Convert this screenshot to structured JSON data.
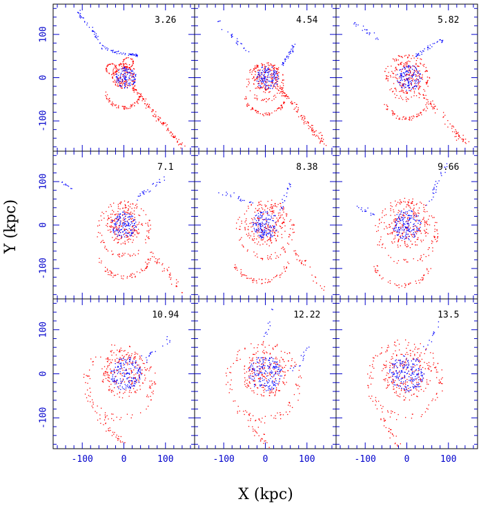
{
  "chart_data": {
    "type": "scatter",
    "xlabel": "X (kpc)",
    "ylabel": "Y (kpc)",
    "xlim": [
      -170,
      170
    ],
    "ylim": [
      -170,
      170
    ],
    "xticks": [
      -100,
      0,
      100
    ],
    "yticks": [
      -100,
      0,
      100
    ],
    "grid": false,
    "series_colors": {
      "red": "#ff0000",
      "blue": "#0000ff"
    },
    "axis_color": "#0000cc",
    "panels": [
      {
        "label": "3.26",
        "structures": [
          {
            "color": "red",
            "kind": "blob",
            "cx": 0,
            "cy": 5,
            "r": 30,
            "n": 140
          },
          {
            "color": "red",
            "kind": "ring",
            "cx": 10,
            "cy": 35,
            "r": 12,
            "n": 40
          },
          {
            "color": "red",
            "kind": "ring",
            "cx": -30,
            "cy": 20,
            "r": 12,
            "n": 40
          },
          {
            "color": "red",
            "kind": "arc",
            "cx": 0,
            "cy": -25,
            "r": 45,
            "a0": 190,
            "a1": 330,
            "n": 60
          },
          {
            "color": "red",
            "kind": "stream",
            "x0": 20,
            "y0": -20,
            "x1": 140,
            "y1": -160,
            "n": 120,
            "spread": 10
          },
          {
            "color": "blue",
            "kind": "blob",
            "cx": 5,
            "cy": 0,
            "r": 25,
            "n": 120
          },
          {
            "color": "blue",
            "kind": "stream",
            "x0": 40,
            "y0": 50,
            "x1": -30,
            "y1": 60,
            "n": 40,
            "spread": 6
          },
          {
            "color": "blue",
            "kind": "stream",
            "x0": -40,
            "y0": 60,
            "x1": -110,
            "y1": 150,
            "n": 45,
            "spread": 10
          }
        ]
      },
      {
        "label": "4.54",
        "structures": [
          {
            "color": "red",
            "kind": "blob",
            "cx": 0,
            "cy": 0,
            "r": 35,
            "n": 160
          },
          {
            "color": "red",
            "kind": "ring",
            "cx": 0,
            "cy": -10,
            "r": 42,
            "n": 80
          },
          {
            "color": "red",
            "kind": "arc",
            "cx": 0,
            "cy": -35,
            "r": 50,
            "a0": 190,
            "a1": 340,
            "n": 60
          },
          {
            "color": "red",
            "kind": "stream",
            "x0": 30,
            "y0": -20,
            "x1": 140,
            "y1": -150,
            "n": 110,
            "spread": 12
          },
          {
            "color": "blue",
            "kind": "blob",
            "cx": 5,
            "cy": 0,
            "r": 28,
            "n": 130
          },
          {
            "color": "blue",
            "kind": "stream",
            "x0": 40,
            "y0": 30,
            "x1": 70,
            "y1": 75,
            "n": 35,
            "spread": 8
          },
          {
            "color": "blue",
            "kind": "stream",
            "x0": -40,
            "y0": 60,
            "x1": -120,
            "y1": 130,
            "n": 25,
            "spread": 12
          }
        ]
      },
      {
        "label": "5.82",
        "structures": [
          {
            "color": "red",
            "kind": "blob",
            "cx": 0,
            "cy": 0,
            "r": 40,
            "n": 170
          },
          {
            "color": "red",
            "kind": "ring",
            "cx": 0,
            "cy": 0,
            "r": 50,
            "n": 90
          },
          {
            "color": "red",
            "kind": "arc",
            "cx": 0,
            "cy": -40,
            "r": 55,
            "a0": 200,
            "a1": 340,
            "n": 60
          },
          {
            "color": "red",
            "kind": "stream",
            "x0": 40,
            "y0": -40,
            "x1": 140,
            "y1": -150,
            "n": 70,
            "spread": 14
          },
          {
            "color": "blue",
            "kind": "blob",
            "cx": 5,
            "cy": 0,
            "r": 30,
            "n": 130
          },
          {
            "color": "blue",
            "kind": "stream",
            "x0": 20,
            "y0": 50,
            "x1": 90,
            "y1": 90,
            "n": 35,
            "spread": 8
          },
          {
            "color": "blue",
            "kind": "stream",
            "x0": -70,
            "y0": 90,
            "x1": -130,
            "y1": 130,
            "n": 20,
            "spread": 10
          }
        ]
      },
      {
        "label": "7.1",
        "structures": [
          {
            "color": "red",
            "kind": "blob",
            "cx": 0,
            "cy": 0,
            "r": 45,
            "n": 190
          },
          {
            "color": "red",
            "kind": "ring",
            "cx": 0,
            "cy": -10,
            "r": 60,
            "n": 90
          },
          {
            "color": "red",
            "kind": "arc",
            "cx": 0,
            "cy": -55,
            "r": 65,
            "a0": 200,
            "a1": 340,
            "n": 60
          },
          {
            "color": "red",
            "kind": "stream",
            "x0": 60,
            "y0": -60,
            "x1": 140,
            "y1": -150,
            "n": 40,
            "spread": 15
          },
          {
            "color": "blue",
            "kind": "blob",
            "cx": 0,
            "cy": 0,
            "r": 30,
            "n": 140
          },
          {
            "color": "blue",
            "kind": "stream",
            "x0": 30,
            "y0": 60,
            "x1": 100,
            "y1": 110,
            "n": 25,
            "spread": 10
          },
          {
            "color": "blue",
            "kind": "stream",
            "x0": -120,
            "y0": 80,
            "x1": -150,
            "y1": 100,
            "n": 10,
            "spread": 8
          }
        ]
      },
      {
        "label": "8.38",
        "structures": [
          {
            "color": "red",
            "kind": "blob",
            "cx": 0,
            "cy": 0,
            "r": 50,
            "n": 200
          },
          {
            "color": "red",
            "kind": "ring",
            "cx": 0,
            "cy": -10,
            "r": 65,
            "n": 90
          },
          {
            "color": "red",
            "kind": "arc",
            "cx": -10,
            "cy": -60,
            "r": 70,
            "a0": 200,
            "a1": 340,
            "n": 60
          },
          {
            "color": "red",
            "kind": "stream",
            "x0": 70,
            "y0": -60,
            "x1": 140,
            "y1": -150,
            "n": 30,
            "spread": 15
          },
          {
            "color": "blue",
            "kind": "blob",
            "cx": 0,
            "cy": 0,
            "r": 32,
            "n": 150
          },
          {
            "color": "blue",
            "kind": "stream",
            "x0": -30,
            "y0": 50,
            "x1": -110,
            "y1": 80,
            "n": 20,
            "spread": 12
          },
          {
            "color": "blue",
            "kind": "stream",
            "x0": 40,
            "y0": 40,
            "x1": 60,
            "y1": 100,
            "n": 20,
            "spread": 10
          }
        ]
      },
      {
        "label": "9.66",
        "structures": [
          {
            "color": "red",
            "kind": "blob",
            "cx": 0,
            "cy": 0,
            "r": 55,
            "n": 210
          },
          {
            "color": "red",
            "kind": "ring",
            "cx": 0,
            "cy": -15,
            "r": 70,
            "n": 100
          },
          {
            "color": "red",
            "kind": "arc",
            "cx": -10,
            "cy": -70,
            "r": 70,
            "a0": 200,
            "a1": 340,
            "n": 50
          },
          {
            "color": "blue",
            "kind": "blob",
            "cx": 0,
            "cy": 0,
            "r": 35,
            "n": 160
          },
          {
            "color": "blue",
            "kind": "stream",
            "x0": 50,
            "y0": 50,
            "x1": 100,
            "y1": 150,
            "n": 25,
            "spread": 12
          },
          {
            "color": "blue",
            "kind": "stream",
            "x0": -60,
            "y0": 20,
            "x1": -120,
            "y1": 40,
            "n": 15,
            "spread": 12
          }
        ]
      },
      {
        "label": "10.94",
        "structures": [
          {
            "color": "red",
            "kind": "blob",
            "cx": 0,
            "cy": 0,
            "r": 55,
            "n": 210
          },
          {
            "color": "red",
            "kind": "ring",
            "cx": -10,
            "cy": -20,
            "r": 80,
            "n": 100
          },
          {
            "color": "red",
            "kind": "stream",
            "x0": -60,
            "y0": -100,
            "x1": 0,
            "y1": -160,
            "n": 30,
            "spread": 15
          },
          {
            "color": "blue",
            "kind": "blob",
            "cx": 5,
            "cy": 0,
            "r": 38,
            "n": 170
          },
          {
            "color": "blue",
            "kind": "stream",
            "x0": 50,
            "y0": 30,
            "x1": 110,
            "y1": 80,
            "n": 18,
            "spread": 15
          }
        ]
      },
      {
        "label": "12.22",
        "structures": [
          {
            "color": "red",
            "kind": "blob",
            "cx": 0,
            "cy": 0,
            "r": 55,
            "n": 200
          },
          {
            "color": "red",
            "kind": "ring",
            "cx": -5,
            "cy": -20,
            "r": 85,
            "n": 110
          },
          {
            "color": "red",
            "kind": "stream",
            "x0": -40,
            "y0": -100,
            "x1": 0,
            "y1": -160,
            "n": 25,
            "spread": 15
          },
          {
            "color": "blue",
            "kind": "blob",
            "cx": 0,
            "cy": 0,
            "r": 40,
            "n": 180
          },
          {
            "color": "blue",
            "kind": "stream",
            "x0": 60,
            "y0": 0,
            "x1": 110,
            "y1": 60,
            "n": 15,
            "spread": 15
          },
          {
            "color": "blue",
            "kind": "stream",
            "x0": 0,
            "y0": 80,
            "x1": 20,
            "y1": 150,
            "n": 10,
            "spread": 10
          }
        ]
      },
      {
        "label": "13.5",
        "structures": [
          {
            "color": "red",
            "kind": "blob",
            "cx": 0,
            "cy": 0,
            "r": 60,
            "n": 210
          },
          {
            "color": "red",
            "kind": "ring",
            "cx": -5,
            "cy": -15,
            "r": 85,
            "n": 110
          },
          {
            "color": "red",
            "kind": "stream",
            "x0": -60,
            "y0": -100,
            "x1": -20,
            "y1": -160,
            "n": 25,
            "spread": 15
          },
          {
            "color": "blue",
            "kind": "blob",
            "cx": 0,
            "cy": 0,
            "r": 42,
            "n": 190
          },
          {
            "color": "blue",
            "kind": "stream",
            "x0": 40,
            "y0": 50,
            "x1": 80,
            "y1": 120,
            "n": 12,
            "spread": 12
          }
        ]
      }
    ]
  }
}
